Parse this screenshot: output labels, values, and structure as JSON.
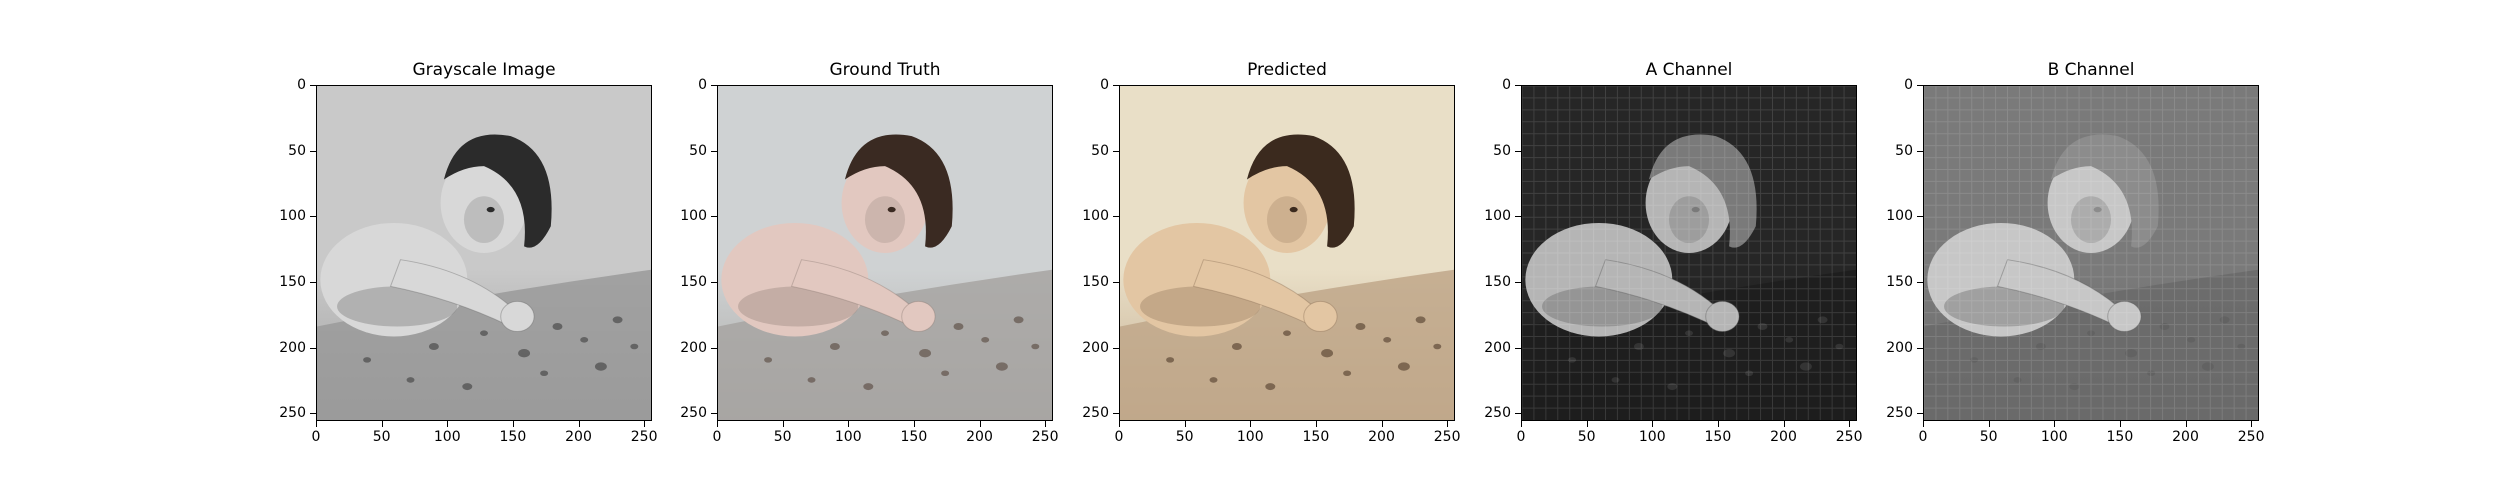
{
  "panels": [
    {
      "key": "grayscale",
      "title": "Grayscale Image",
      "icon": "baby-photo-grayscale",
      "palette": {
        "bg": "#c9c9c9",
        "floor": "#9a9a9a",
        "skin": "#d8d8d8",
        "shadow": "#6a6a6a",
        "hair": "#2b2b2b",
        "stones": "#555555"
      }
    },
    {
      "key": "ground_truth",
      "title": "Ground Truth",
      "icon": "baby-photo-color",
      "palette": {
        "bg": "#cfd2d3",
        "floor": "#a7a5a2",
        "skin": "#e2c8c0",
        "shadow": "#8c7b74",
        "hair": "#3a2a22",
        "stones": "#6a5e56"
      }
    },
    {
      "key": "predicted",
      "title": "Predicted",
      "icon": "baby-photo-color",
      "palette": {
        "bg": "#e9dfc7",
        "floor": "#bfa78a",
        "skin": "#e3c6a3",
        "shadow": "#8a6f55",
        "hair": "#3b2a1e",
        "stones": "#6c5642"
      }
    },
    {
      "key": "a_channel",
      "title": "A Channel",
      "icon": "baby-photo-channel",
      "palette": {
        "bg": "#262626",
        "floor": "#1d1d1d",
        "skin": "#b5b5b5",
        "shadow": "#585858",
        "hair": "#7a7a7a",
        "stones": "#3a3a3a"
      }
    },
    {
      "key": "b_channel",
      "title": "B Channel",
      "icon": "baby-photo-channel",
      "palette": {
        "bg": "#7a7a7a",
        "floor": "#6a6a6a",
        "skin": "#c7c7c7",
        "shadow": "#5a5a5a",
        "hair": "#8c8c8c",
        "stones": "#606060"
      }
    }
  ],
  "axes": {
    "y_ticks": [
      "0",
      "50",
      "100",
      "150",
      "200",
      "250"
    ],
    "x_ticks": [
      "0",
      "50",
      "100",
      "150",
      "200",
      "250"
    ],
    "range": [
      0,
      256
    ]
  }
}
